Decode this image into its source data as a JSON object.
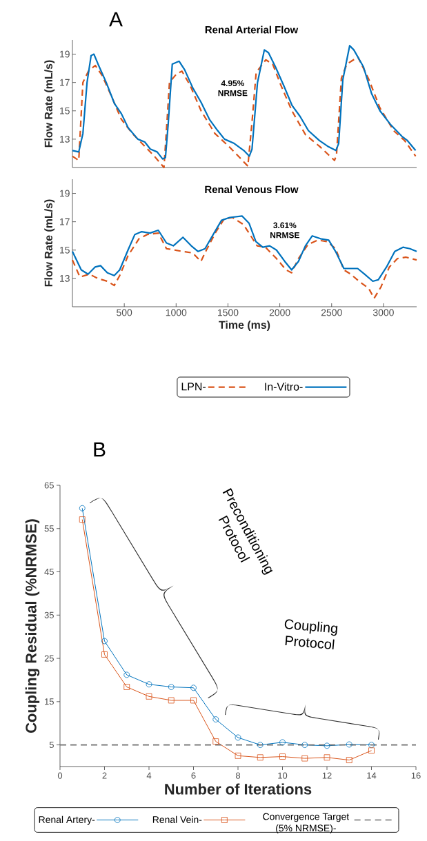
{
  "chart_data": [
    {
      "type": "line",
      "title": "Renal Arterial Flow",
      "ylabel": "Flow Rate (mL/s)",
      "xlim": [
        0,
        3320
      ],
      "ylim": [
        11,
        20
      ],
      "yticks": [
        13,
        15,
        17,
        19
      ],
      "tick_labels": "y",
      "marker": "none",
      "annotations": [
        "A",
        "4.95% NRMSE"
      ],
      "series": [
        {
          "color": "#d95319",
          "line_style": "dashed",
          "x": [
            0,
            61,
            101,
            154,
            220,
            286,
            366,
            472,
            578,
            684,
            790,
            883,
            910,
            936,
            1003,
            1056,
            1135,
            1241,
            1374,
            1507,
            1613,
            1692,
            1732,
            1772,
            1865,
            1931,
            2011,
            2117,
            2249,
            2382,
            2528,
            2547,
            2594,
            2647,
            2753,
            2860,
            2966,
            3098,
            3204,
            3310
          ],
          "values": [
            11.8,
            11.5,
            17.0,
            17.8,
            18.2,
            17.5,
            16.2,
            14.4,
            13.4,
            12.6,
            11.8,
            11.0,
            14.0,
            17.0,
            17.6,
            17.8,
            16.8,
            15.0,
            13.4,
            12.5,
            11.7,
            11.1,
            14.2,
            17.7,
            18.6,
            18.3,
            16.8,
            15.0,
            13.3,
            12.5,
            11.5,
            11.9,
            17.3,
            18.3,
            18.8,
            17.2,
            15.2,
            13.6,
            12.9,
            11.8
          ]
        },
        {
          "color": "#0072bd",
          "line_style": "solid",
          "x": [
            0,
            61,
            101,
            141,
            180,
            207,
            247,
            326,
            406,
            472,
            538,
            631,
            698,
            751,
            817,
            870,
            897,
            923,
            963,
            1029,
            1082,
            1162,
            1241,
            1321,
            1401,
            1467,
            1560,
            1653,
            1706,
            1732,
            1785,
            1851,
            1891,
            1958,
            2037,
            2117,
            2196,
            2276,
            2382,
            2462,
            2541,
            2568,
            2608,
            2674,
            2714,
            2807,
            2886,
            2966,
            3072,
            3178,
            3231,
            3310
          ],
          "values": [
            12.2,
            12.1,
            13.4,
            17.0,
            18.9,
            19.0,
            18.3,
            17.0,
            15.5,
            14.8,
            13.8,
            13.0,
            12.8,
            12.3,
            12.1,
            11.6,
            11.7,
            14.0,
            18.3,
            18.5,
            17.9,
            16.6,
            15.6,
            14.4,
            13.6,
            13.0,
            12.7,
            12.2,
            11.8,
            12.3,
            17.0,
            19.3,
            19.1,
            18.1,
            16.8,
            15.4,
            14.6,
            13.6,
            12.9,
            12.5,
            12.2,
            12.7,
            17.2,
            19.6,
            19.3,
            18.1,
            16.2,
            15.0,
            14.0,
            13.2,
            12.9,
            12.2
          ]
        }
      ]
    },
    {
      "type": "line",
      "title": "Renal Venous Flow",
      "xlabel": "Time (ms)",
      "ylabel": "Flow Rate (mL/s)",
      "xlim": [
        0,
        3320
      ],
      "ylim": [
        11,
        20
      ],
      "xticks": [
        500,
        1000,
        1500,
        2000,
        2500,
        3000
      ],
      "yticks": [
        13,
        15,
        17,
        19
      ],
      "marker": "none",
      "legend": "bottom",
      "annotations": [
        "3.61% NRMSE"
      ],
      "series": [
        {
          "name": "LPN-",
          "color": "#d95319",
          "line_style": "dashed",
          "x": [
            0,
            72,
            164,
            244,
            337,
            403,
            456,
            536,
            642,
            721,
            828,
            907,
            987,
            1066,
            1159,
            1239,
            1292,
            1385,
            1464,
            1544,
            1650,
            1729,
            1782,
            1862,
            1968,
            2061,
            2114,
            2180,
            2273,
            2366,
            2459,
            2538,
            2618,
            2684,
            2764,
            2857,
            2910,
            2976,
            3056,
            3135,
            3215,
            3320
          ],
          "values": [
            14.3,
            13.1,
            13.3,
            13.0,
            12.8,
            12.5,
            13.2,
            14.6,
            15.8,
            16.1,
            16.2,
            15.1,
            15.0,
            14.9,
            14.8,
            14.2,
            15.0,
            16.3,
            17.2,
            17.3,
            16.8,
            15.9,
            15.3,
            15.2,
            14.4,
            13.6,
            13.4,
            14.4,
            15.4,
            15.7,
            15.6,
            15.1,
            13.6,
            13.3,
            12.8,
            12.3,
            11.6,
            12.4,
            13.8,
            14.4,
            14.5,
            14.3
          ]
        },
        {
          "name": "In-Vitro-",
          "color": "#0072bd",
          "line_style": "solid",
          "x": [
            0,
            85,
            151,
            218,
            271,
            337,
            403,
            456,
            536,
            602,
            668,
            748,
            828,
            907,
            973,
            1066,
            1146,
            1212,
            1279,
            1358,
            1438,
            1517,
            1637,
            1703,
            1769,
            1836,
            1902,
            1968,
            2048,
            2114,
            2180,
            2247,
            2313,
            2393,
            2472,
            2538,
            2618,
            2698,
            2751,
            2817,
            2897,
            2950,
            3029,
            3109,
            3188,
            3255,
            3320
          ],
          "values": [
            14.9,
            13.6,
            13.3,
            13.8,
            13.9,
            13.4,
            13.2,
            13.6,
            15.0,
            16.1,
            16.3,
            16.2,
            16.4,
            15.5,
            15.3,
            15.9,
            15.3,
            14.9,
            15.1,
            16.1,
            17.1,
            17.3,
            17.4,
            16.9,
            15.6,
            15.2,
            15.3,
            15.0,
            14.2,
            13.6,
            14.2,
            15.3,
            16.0,
            15.8,
            15.7,
            14.9,
            13.7,
            13.7,
            13.7,
            13.3,
            12.8,
            12.9,
            13.8,
            14.9,
            15.2,
            15.1,
            14.9
          ]
        }
      ]
    },
    {
      "type": "line",
      "xlabel": "Number of Iterations",
      "ylabel": "Coupling Residual (%NRMSE)",
      "xlim": [
        0,
        16
      ],
      "ylim": [
        0,
        65
      ],
      "xticks": [
        0,
        2,
        4,
        6,
        8,
        10,
        12,
        14,
        16
      ],
      "yticks": [
        5,
        15,
        25,
        35,
        45,
        55,
        65
      ],
      "legend": "bottom",
      "annotations": [
        "B",
        "Preconditioning Protocol",
        "Coupling Protocol"
      ],
      "x": [
        1,
        2,
        3,
        4,
        5,
        6,
        7,
        8,
        9,
        10,
        11,
        12,
        13,
        14
      ],
      "series": [
        {
          "name": "Renal Artery-",
          "color": "#0072bd",
          "marker": "circle",
          "values": [
            59.7,
            29.0,
            21.2,
            19.0,
            18.4,
            18.2,
            10.9,
            6.7,
            5.0,
            5.6,
            5.0,
            4.8,
            5.1,
            5.0
          ]
        },
        {
          "name": "Renal Vein-",
          "color": "#d95319",
          "marker": "square",
          "values": [
            57.1,
            25.9,
            18.4,
            16.2,
            15.3,
            15.3,
            5.8,
            2.5,
            2.1,
            2.3,
            1.9,
            2.1,
            1.5,
            3.7
          ]
        }
      ],
      "ref_lines": [
        {
          "axis": "y",
          "value": 5,
          "label": "Convergence Target (5% NRMSE)-",
          "color": "#6e6e6e",
          "line_style": "dashed"
        }
      ]
    }
  ]
}
